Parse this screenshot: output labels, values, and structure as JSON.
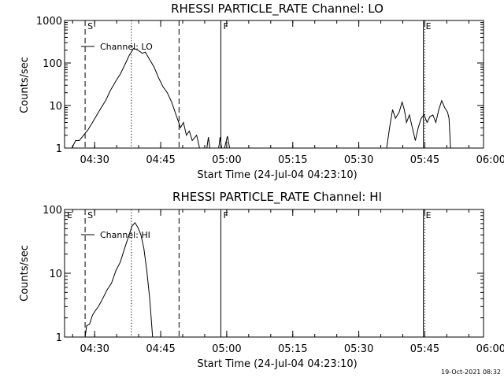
{
  "chart_data": [
    {
      "type": "line",
      "title": "RHESSI PARTICLE_RATE Channel: LO",
      "xlabel": "Start Time (24-Jul-04 04:23:10)",
      "ylabel": "Counts/sec",
      "yscale": "log",
      "xlim": [
        0,
        5710
      ],
      "ylim": [
        1,
        1000
      ],
      "xtick_labels": [
        "04:30",
        "04:45",
        "05:00",
        "05:15",
        "05:30",
        "05:45",
        "06:00"
      ],
      "xtick_values": [
        410,
        1310,
        2210,
        3110,
        4010,
        4910,
        5810
      ],
      "ytick_labels": [
        "1",
        "10",
        "100",
        "1000"
      ],
      "ytick_values": [
        1,
        10,
        100,
        1000
      ],
      "legend": "Channel: LO",
      "markers": [
        {
          "label": "S",
          "x": 280,
          "style": "dashed"
        },
        {
          "label": "F",
          "x": 2130,
          "style": "solid"
        },
        {
          "label": "E",
          "x": 4890,
          "style": "solid"
        }
      ],
      "extra_lines": [
        {
          "x": 910,
          "style": "dotted"
        },
        {
          "x": 1560,
          "style": "dashed"
        },
        {
          "x": 4910,
          "style": "dotted"
        },
        {
          "x": 5710,
          "style": "dotted"
        }
      ],
      "series": [
        {
          "segments": [
            [
              [
                100,
                1
              ],
              [
                150,
                1.5
              ],
              [
                200,
                1.5
              ],
              [
                260,
                2
              ],
              [
                320,
                2.7
              ],
              [
                380,
                4
              ],
              [
                440,
                6
              ],
              [
                500,
                9
              ],
              [
                560,
                13
              ],
              [
                620,
                22
              ],
              [
                700,
                38
              ],
              [
                760,
                55
              ],
              [
                820,
                90
              ],
              [
                880,
                150
              ],
              [
                940,
                220
              ],
              [
                1000,
                200
              ],
              [
                1060,
                170
              ],
              [
                1100,
                180
              ],
              [
                1160,
                120
              ],
              [
                1220,
                80
              ],
              [
                1280,
                45
              ],
              [
                1340,
                28
              ],
              [
                1400,
                20
              ],
              [
                1460,
                12
              ],
              [
                1520,
                6
              ],
              [
                1580,
                3
              ],
              [
                1620,
                4
              ],
              [
                1660,
                2
              ],
              [
                1700,
                2.5
              ],
              [
                1740,
                1.5
              ],
              [
                1800,
                2
              ],
              [
                1840,
                1
              ]
            ],
            [
              [
                1940,
                1
              ],
              [
                1960,
                1.8
              ],
              [
                1980,
                1
              ]
            ],
            [
              [
                2100,
                1
              ],
              [
                2120,
                1.8
              ],
              [
                2140,
                1
              ]
            ],
            [
              [
                2180,
                1
              ],
              [
                2220,
                1.9
              ],
              [
                2250,
                1
              ]
            ],
            [
              [
                4390,
                1
              ],
              [
                4430,
                3
              ],
              [
                4470,
                8
              ],
              [
                4510,
                5
              ],
              [
                4560,
                7
              ],
              [
                4600,
                12
              ],
              [
                4630,
                8
              ],
              [
                4660,
                4
              ],
              [
                4700,
                6
              ],
              [
                4740,
                3
              ],
              [
                4780,
                1.5
              ],
              [
                4820,
                3
              ],
              [
                4860,
                5
              ],
              [
                4900,
                6
              ],
              [
                4940,
                4
              ],
              [
                4980,
                5.5
              ],
              [
                5020,
                6
              ],
              [
                5060,
                4
              ],
              [
                5100,
                8
              ],
              [
                5140,
                13
              ],
              [
                5180,
                9
              ],
              [
                5220,
                7
              ],
              [
                5240,
                5
              ],
              [
                5260,
                1
              ]
            ]
          ]
        }
      ]
    },
    {
      "type": "line",
      "title": "RHESSI PARTICLE_RATE Channel: HI",
      "xlabel": "Start Time (24-Jul-04 04:23:10)",
      "ylabel": "Counts/sec",
      "yscale": "log",
      "xlim": [
        0,
        5710
      ],
      "ylim": [
        1,
        100
      ],
      "xtick_labels": [
        "04:30",
        "04:45",
        "05:00",
        "05:15",
        "05:30",
        "05:45",
        "06:00"
      ],
      "xtick_values": [
        410,
        1310,
        2210,
        3110,
        4010,
        4910,
        5810
      ],
      "ytick_labels": [
        "1",
        "10",
        "100"
      ],
      "ytick_values": [
        1,
        10,
        100
      ],
      "legend": "Channel: HI",
      "markers": [
        {
          "label": "E",
          "x": 0,
          "style": "none"
        },
        {
          "label": "S",
          "x": 280,
          "style": "dashed"
        },
        {
          "label": "F",
          "x": 2130,
          "style": "solid"
        },
        {
          "label": "E",
          "x": 4890,
          "style": "solid"
        }
      ],
      "extra_lines": [
        {
          "x": 910,
          "style": "dotted"
        },
        {
          "x": 1560,
          "style": "dashed"
        },
        {
          "x": 4910,
          "style": "dotted"
        },
        {
          "x": 5710,
          "style": "dotted"
        }
      ],
      "series": [
        {
          "segments": [
            [
              [
                280,
                1
              ],
              [
                300,
                1.5
              ],
              [
                340,
                1.6
              ],
              [
                380,
                2.2
              ],
              [
                420,
                2.6
              ],
              [
                460,
                3
              ],
              [
                520,
                4
              ],
              [
                580,
                5.5
              ],
              [
                640,
                7
              ],
              [
                700,
                11
              ],
              [
                760,
                15
              ],
              [
                820,
                25
              ],
              [
                880,
                40
              ],
              [
                920,
                55
              ],
              [
                960,
                62
              ],
              [
                1000,
                52
              ],
              [
                1040,
                40
              ],
              [
                1080,
                25
              ],
              [
                1120,
                11
              ],
              [
                1160,
                4
              ],
              [
                1200,
                1
              ]
            ]
          ]
        }
      ]
    }
  ],
  "footer": {
    "timestamp": "19-Oct-2021 08:32"
  }
}
